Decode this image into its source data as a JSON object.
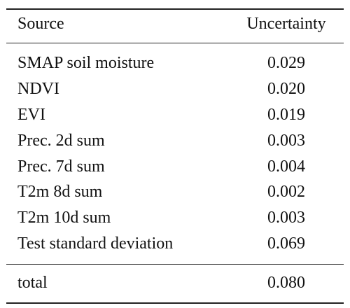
{
  "table": {
    "header": {
      "source": "Source",
      "uncertainty": "Uncertainty"
    },
    "rows": [
      {
        "source": "SMAP soil moisture",
        "uncertainty": "0.029"
      },
      {
        "source": "NDVI",
        "uncertainty": "0.020"
      },
      {
        "source": "EVI",
        "uncertainty": "0.019"
      },
      {
        "source": "Prec. 2d sum",
        "uncertainty": "0.003"
      },
      {
        "source": "Prec. 7d sum",
        "uncertainty": "0.004"
      },
      {
        "source": "T2m 8d sum",
        "uncertainty": "0.002"
      },
      {
        "source": "T2m 10d sum",
        "uncertainty": "0.003"
      },
      {
        "source": "Test standard deviation",
        "uncertainty": "0.069"
      }
    ],
    "total": {
      "source": "total",
      "uncertainty": "0.080"
    }
  }
}
